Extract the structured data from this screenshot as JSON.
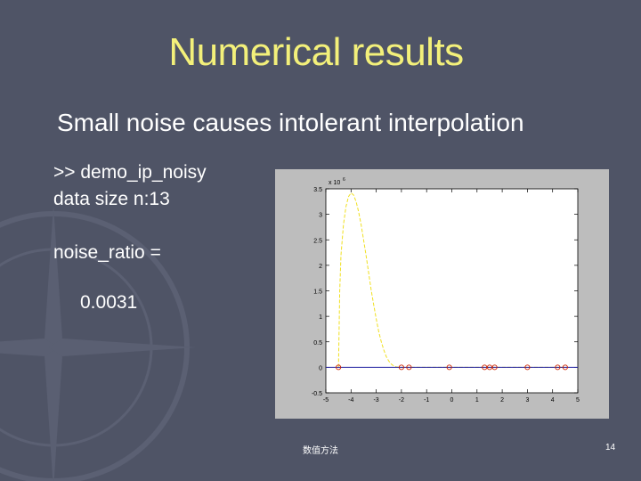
{
  "slide": {
    "title": "Numerical results",
    "subtitle": "Small noise causes intolerant interpolation",
    "console": {
      "command": ">> demo_ip_noisy",
      "data_size": "data size n:13",
      "noise_label": "noise_ratio =",
      "noise_value": "0.0031"
    },
    "footer_left": "数值方法",
    "page_number": "14"
  },
  "colors": {
    "background": "#4f5466",
    "title": "#f3f07a",
    "text": "#ffffff",
    "curve": "#f0e020",
    "baseline": "#2020a0",
    "markers": "#cc2200"
  },
  "chart_data": {
    "type": "line",
    "title": "",
    "xlabel": "",
    "ylabel": "",
    "y_multiplier": "10^6",
    "xlim": [
      -5,
      5
    ],
    "ylim": [
      -0.5,
      3.5
    ],
    "xticks": [
      "-5",
      "-4",
      "-3",
      "-2",
      "-1",
      "0",
      "1",
      "2",
      "3",
      "4",
      "5"
    ],
    "yticks": [
      "-0.5",
      "0",
      "0.5",
      "1",
      "1.5",
      "2",
      "2.5",
      "3",
      "3.5"
    ],
    "grid": false,
    "series": [
      {
        "style": "dashed",
        "x": [
          -4.5,
          -4.45,
          -4.4,
          -4.3,
          -4.2,
          -4.1,
          -4.0,
          -3.9,
          -3.8,
          -3.7,
          -3.6,
          -3.5,
          -3.4,
          -3.3,
          -3.2,
          -3.1,
          -3.0,
          -2.9,
          -2.8,
          -2.7,
          -2.6,
          -2.5,
          -2.4,
          -2.3,
          -2.2,
          -2.1,
          -2.0,
          -1.8,
          -1.6,
          -1.4,
          -1.2,
          -1.0,
          0,
          1,
          2,
          3,
          4,
          4.5
        ],
        "y": [
          0,
          1.5,
          2.2,
          2.8,
          3.15,
          3.35,
          3.42,
          3.38,
          3.25,
          3.05,
          2.8,
          2.5,
          2.18,
          1.85,
          1.52,
          1.22,
          0.95,
          0.7,
          0.5,
          0.34,
          0.21,
          0.12,
          0.06,
          0.025,
          0.008,
          0.002,
          0,
          0,
          0,
          0,
          0,
          0,
          0,
          0,
          0,
          0,
          0,
          0
        ]
      },
      {
        "style": "solid",
        "x": [
          -5,
          5
        ],
        "y": [
          0,
          0
        ]
      }
    ],
    "markers": {
      "x": [
        -4.5,
        -2.0,
        -1.7,
        -0.1,
        1.3,
        1.5,
        1.7,
        3.0,
        4.2,
        4.5
      ],
      "y": [
        0,
        0,
        0,
        0,
        0,
        0,
        0,
        0,
        0,
        0
      ]
    }
  }
}
